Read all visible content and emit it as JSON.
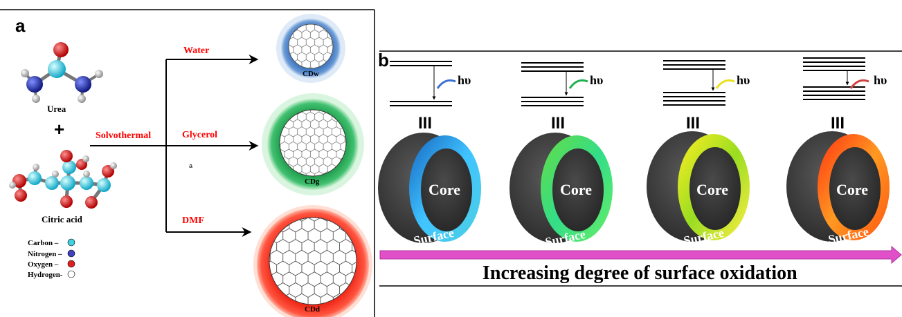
{
  "panel_a": {
    "label": "a",
    "molecules": {
      "urea": "Urea",
      "plus": "+",
      "citric": "Citric acid"
    },
    "legend": [
      {
        "label": "Carbon –",
        "color": "#40d0e0"
      },
      {
        "label": "Nitrogen –",
        "color": "#4040c0"
      },
      {
        "label": "Oxygen –",
        "color": "#e02020"
      },
      {
        "label": "Hydrogen-",
        "color": "#ffffff"
      }
    ],
    "method": "Solvothermal",
    "stray_mark": "a",
    "routes": [
      {
        "solvent": "Water",
        "product": "CDw",
        "color": "#4a86c8"
      },
      {
        "solvent": "Glycerol",
        "product": "CDg",
        "color": "#2fae5a"
      },
      {
        "solvent": "DMF",
        "product": "CDd",
        "color": "#f03020"
      }
    ]
  },
  "panel_b": {
    "label": "b",
    "hv": "hυ",
    "symbol": "III",
    "core": "Core",
    "surface": "Surface",
    "rings": [
      {
        "name": "blue",
        "colors": [
          "#1565c0",
          "#40c4ff",
          "#4dd0e1"
        ],
        "wave": "#3a70d0"
      },
      {
        "name": "green",
        "colors": [
          "#66dd44",
          "#33dd88",
          "#66ee66"
        ],
        "wave": "#20b050"
      },
      {
        "name": "yellow",
        "colors": [
          "#ffee22",
          "#99dd22",
          "#ffee44"
        ],
        "wave": "#e8e020"
      },
      {
        "name": "red",
        "colors": [
          "#ff3311",
          "#ff9922",
          "#ff5511"
        ],
        "wave": "#d04040"
      }
    ],
    "arrow_color": "#e050c8",
    "caption": "Increasing  degree of surface oxidation"
  }
}
